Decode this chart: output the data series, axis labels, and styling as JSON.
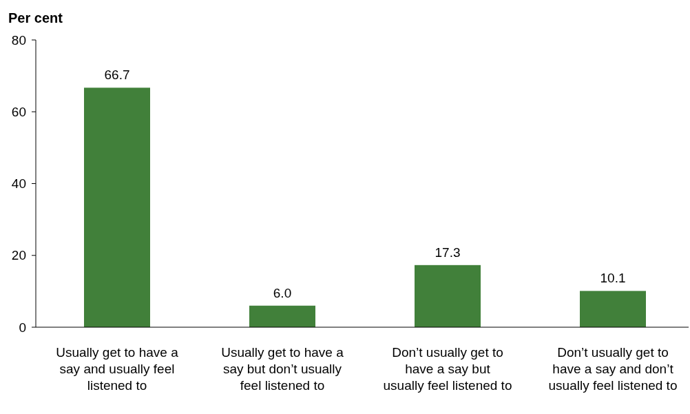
{
  "chart_data": {
    "type": "bar",
    "ylabel": "Per cent",
    "categories": [
      "Usually get to have a say and usually feel listened to",
      "Usually get to have a say but don’t usually feel listened to",
      "Don’t usually get to have a say but usually feel listened to",
      "Don’t usually get to have a say and don’t usually feel listened to"
    ],
    "values": [
      66.7,
      6.0,
      17.3,
      10.1
    ],
    "value_labels": [
      "66.7",
      "6.0",
      "17.3",
      "10.1"
    ],
    "color": "#41803a",
    "ylim": [
      0,
      80
    ],
    "yticks": [
      0,
      20,
      40,
      60,
      80
    ]
  }
}
